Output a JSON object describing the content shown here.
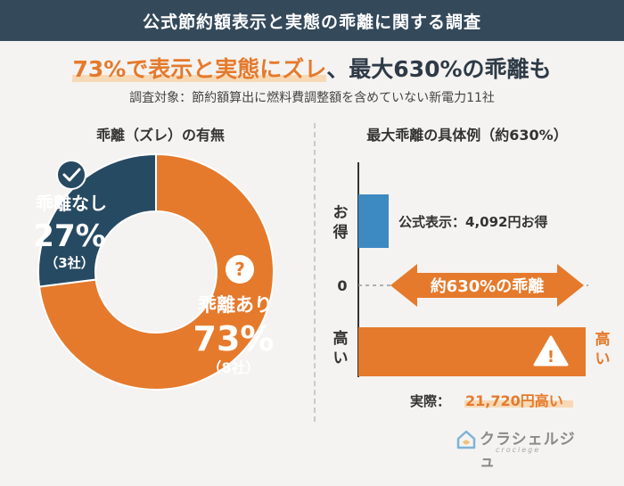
{
  "header": {
    "title": "公式節約額表示と実態の乖離に関する調査"
  },
  "headline": {
    "highlight": "73%で表示と実態にズレ",
    "rest": "、最大630%の乖離も"
  },
  "subline": "調査対象：節約額算出に燃料費調整額を含めていない新電力11社",
  "left_title": "乖離（ズレ）の有無",
  "right_title": "最大乖離の具体例（約630%）",
  "colors": {
    "orange": "#e57a2c",
    "navy": "#274a63",
    "blue": "#3d8ac1",
    "header": "#34495a"
  },
  "chart_data": [
    {
      "type": "pie",
      "title": "乖離（ズレ）の有無",
      "slices": [
        {
          "label": "乖離なし",
          "pct_label": "27%",
          "count_label": "（3社）",
          "value": 27,
          "color": "#274a63",
          "icon": "check-icon"
        },
        {
          "label": "乖離あり",
          "pct_label": "73%",
          "count_label": "（8社）",
          "value": 73,
          "color": "#e57a2c",
          "icon": "question-icon"
        }
      ]
    },
    {
      "type": "bar",
      "title": "最大乖離の具体例（約630%）",
      "ylim": [
        -21720,
        4092
      ],
      "y_top_label": "お得",
      "y_zero_label": "0",
      "y_bottom_label": "高い",
      "bars": [
        {
          "name": "公式表示",
          "value": 4092,
          "label": "公式表示：4,092円お得",
          "color": "#3d8ac1"
        },
        {
          "name": "実際",
          "value": -21720,
          "label_prefix": "実際：",
          "label_value": "21,720円高い",
          "color": "#e57a2c",
          "end_label": "高い",
          "icon": "warning-icon"
        }
      ],
      "annotation": "約630%の乖離"
    }
  ],
  "logo": {
    "name": "クラシェルジュ",
    "sub": "crociege"
  }
}
